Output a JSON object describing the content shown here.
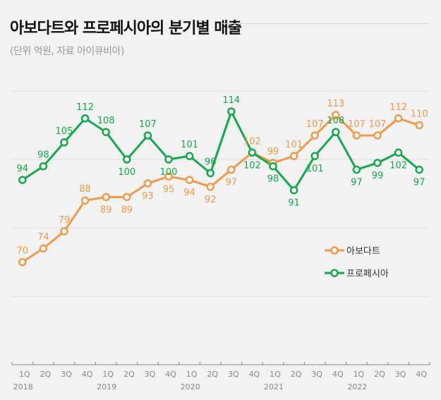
{
  "chart_data": {
    "type": "line",
    "title": "아보다트와 프로페시아의 분기별 매출",
    "subtitle": "(단위 억원, 자료 아이큐비아)",
    "categories": [
      "1Q",
      "2Q",
      "3Q",
      "4Q",
      "1Q",
      "2Q",
      "3Q",
      "4Q",
      "1Q",
      "2Q",
      "3Q",
      "4Q",
      "1Q",
      "2Q",
      "3Q",
      "4Q",
      "1Q",
      "2Q",
      "3Q",
      "4Q"
    ],
    "years": [
      {
        "label": "2018",
        "index": 0
      },
      {
        "label": "2019",
        "index": 4
      },
      {
        "label": "2020",
        "index": 8
      },
      {
        "label": "2021",
        "index": 12
      },
      {
        "label": "2022",
        "index": 16
      }
    ],
    "ylim": [
      40,
      140
    ],
    "gridlines": [
      60,
      80,
      100,
      120
    ],
    "grid": true,
    "legend_position": "right-middle",
    "series": [
      {
        "name": "아보다트",
        "color": "#f0994a",
        "values": [
          70,
          74,
          79,
          88,
          89,
          89,
          93,
          95,
          94,
          92,
          97,
          102,
          99,
          101,
          107,
          113,
          107,
          107,
          112,
          110
        ]
      },
      {
        "name": "프로페시아",
        "color": "#13a84a",
        "values": [
          94,
          98,
          105,
          112,
          108,
          100,
          107,
          100,
          101,
          96,
          114,
          102,
          98,
          91,
          101,
          108,
          97,
          99,
          102,
          97
        ]
      }
    ]
  }
}
